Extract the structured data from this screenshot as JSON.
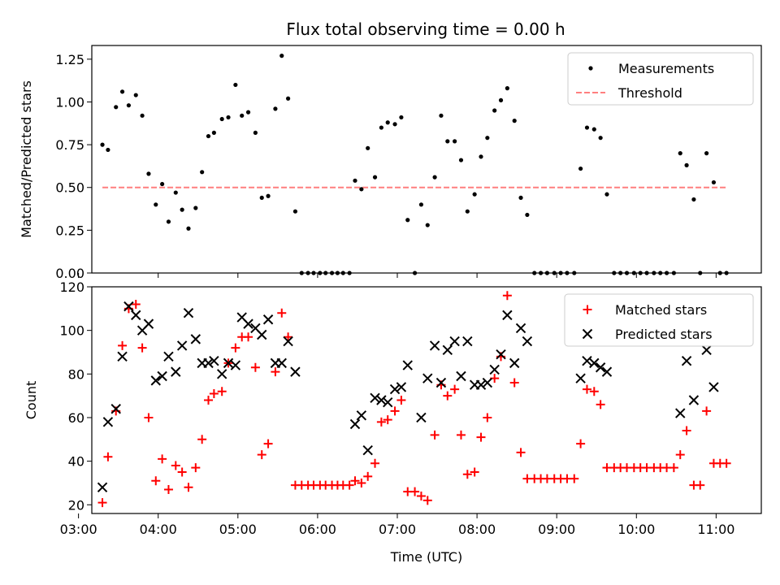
{
  "title": "Flux total observing time = 0.00 h",
  "chart_data": [
    {
      "type": "scatter",
      "panel": "top",
      "title": "Flux total observing time = 0.00 h",
      "xlabel": "",
      "ylabel": "Matched/Predicted stars",
      "xlim": [
        3.167,
        11.567
      ],
      "ylim": [
        0,
        1.33
      ],
      "yticks": [
        0.0,
        0.25,
        0.5,
        0.75,
        1.0,
        1.25
      ],
      "ytick_labels": [
        "0.00",
        "0.25",
        "0.50",
        "0.75",
        "1.00",
        "1.25"
      ],
      "legend_position": "upper right",
      "series": [
        {
          "name": "Measurements",
          "marker": "dot",
          "color": "#000000",
          "x": [
            3.3,
            3.37,
            3.47,
            3.55,
            3.63,
            3.72,
            3.8,
            3.88,
            3.97,
            4.05,
            4.13,
            4.22,
            4.3,
            4.38,
            4.47,
            4.55,
            4.63,
            4.7,
            4.8,
            4.88,
            4.97,
            5.05,
            5.13,
            5.22,
            5.3,
            5.38,
            5.47,
            5.55,
            5.63,
            5.72,
            5.8,
            5.88,
            5.95,
            6.03,
            6.1,
            6.18,
            6.25,
            6.32,
            6.4,
            6.47,
            6.55,
            6.63,
            6.72,
            6.8,
            6.88,
            6.97,
            7.05,
            7.13,
            7.22,
            7.3,
            7.38,
            7.47,
            7.55,
            7.63,
            7.72,
            7.8,
            7.88,
            7.97,
            8.05,
            8.13,
            8.22,
            8.3,
            8.38,
            8.47,
            8.55,
            8.63,
            8.72,
            8.8,
            8.88,
            8.97,
            9.05,
            9.13,
            9.22,
            9.3,
            9.38,
            9.47,
            9.55,
            9.63,
            9.72,
            9.8,
            9.88,
            9.97,
            10.05,
            10.13,
            10.22,
            10.3,
            10.38,
            10.47,
            10.55,
            10.63,
            10.72,
            10.8,
            10.88,
            10.97,
            11.05,
            11.13
          ],
          "y": [
            0.75,
            0.72,
            0.97,
            1.06,
            0.98,
            1.04,
            0.92,
            0.58,
            0.4,
            0.52,
            0.3,
            0.47,
            0.37,
            0.26,
            0.38,
            0.59,
            0.8,
            0.82,
            0.9,
            0.91,
            1.1,
            0.92,
            0.94,
            0.82,
            0.44,
            0.45,
            0.96,
            1.27,
            1.02,
            0.36,
            0,
            0,
            0,
            0,
            0,
            0,
            0,
            0,
            0,
            0.54,
            0.49,
            0.73,
            0.56,
            0.85,
            0.88,
            0.87,
            0.91,
            0.31,
            0,
            0.4,
            0.28,
            0.56,
            0.92,
            0.77,
            0.77,
            0.66,
            0.36,
            0.46,
            0.68,
            0.79,
            0.95,
            1.01,
            1.08,
            0.89,
            0.44,
            0.34,
            0,
            0,
            0,
            0,
            0,
            0,
            0,
            0.61,
            0.85,
            0.84,
            0.79,
            0.46,
            0,
            0,
            0,
            0,
            0,
            0,
            0,
            0,
            0,
            0,
            0.7,
            0.63,
            0.43,
            0,
            0.7,
            0.53,
            0,
            0
          ]
        },
        {
          "name": "Threshold",
          "style": "dashed",
          "color": "#ff7f7f",
          "x": [
            3.3,
            11.13
          ],
          "y": [
            0.5,
            0.5
          ]
        }
      ]
    },
    {
      "type": "scatter",
      "panel": "bottom",
      "xlabel": "Time (UTC)",
      "ylabel": "Count",
      "xlim": [
        3.167,
        11.567
      ],
      "ylim": [
        16,
        120
      ],
      "yticks": [
        20,
        40,
        60,
        80,
        100,
        120
      ],
      "ytick_labels": [
        "20",
        "40",
        "60",
        "80",
        "100",
        "120"
      ],
      "xticks": [
        3,
        4,
        5,
        6,
        7,
        8,
        9,
        10,
        11
      ],
      "xtick_labels": [
        "03:00",
        "04:00",
        "05:00",
        "06:00",
        "07:00",
        "08:00",
        "09:00",
        "10:00",
        "11:00"
      ],
      "legend_position": "upper right",
      "series": [
        {
          "name": "Matched stars",
          "marker": "plus",
          "color": "#ff0000",
          "x": [
            3.3,
            3.37,
            3.47,
            3.55,
            3.63,
            3.72,
            3.8,
            3.88,
            3.97,
            4.05,
            4.13,
            4.22,
            4.3,
            4.38,
            4.47,
            4.55,
            4.63,
            4.7,
            4.8,
            4.88,
            4.97,
            5.05,
            5.13,
            5.22,
            5.3,
            5.38,
            5.47,
            5.55,
            5.63,
            5.72,
            5.8,
            5.88,
            5.95,
            6.03,
            6.1,
            6.18,
            6.25,
            6.32,
            6.4,
            6.47,
            6.55,
            6.63,
            6.72,
            6.8,
            6.88,
            6.97,
            7.05,
            7.13,
            7.22,
            7.3,
            7.38,
            7.47,
            7.55,
            7.63,
            7.72,
            7.8,
            7.88,
            7.97,
            8.05,
            8.13,
            8.22,
            8.3,
            8.38,
            8.47,
            8.55,
            8.63,
            8.72,
            8.8,
            8.88,
            8.97,
            9.05,
            9.13,
            9.22,
            9.3,
            9.38,
            9.47,
            9.55,
            9.63,
            9.72,
            9.8,
            9.88,
            9.97,
            10.05,
            10.13,
            10.22,
            10.3,
            10.38,
            10.47,
            10.55,
            10.63,
            10.72,
            10.8,
            10.88,
            10.97,
            11.05,
            11.13
          ],
          "y": [
            21,
            42,
            63,
            93,
            110,
            112,
            92,
            60,
            31,
            41,
            27,
            38,
            35,
            28,
            37,
            50,
            68,
            71,
            72,
            85,
            92,
            97,
            97,
            83,
            43,
            48,
            81,
            108,
            97,
            29,
            29,
            29,
            29,
            29,
            29,
            29,
            29,
            29,
            29,
            31,
            30,
            33,
            39,
            58,
            59,
            63,
            68,
            26,
            26,
            24,
            22,
            52,
            75,
            70,
            73,
            52,
            34,
            35,
            51,
            60,
            78,
            88,
            116,
            76,
            44,
            32,
            32,
            32,
            32,
            32,
            32,
            32,
            32,
            48,
            73,
            72,
            66,
            37,
            37,
            37,
            37,
            37,
            37,
            37,
            37,
            37,
            37,
            37,
            43,
            54,
            29,
            29,
            63,
            39,
            39,
            39
          ]
        },
        {
          "name": "Predicted stars",
          "marker": "x",
          "color": "#000000",
          "x": [
            3.3,
            3.37,
            3.47,
            3.55,
            3.63,
            3.72,
            3.8,
            3.88,
            3.97,
            4.05,
            4.13,
            4.22,
            4.3,
            4.38,
            4.47,
            4.55,
            4.63,
            4.7,
            4.8,
            4.88,
            4.97,
            5.05,
            5.13,
            5.22,
            5.3,
            5.38,
            5.47,
            5.55,
            5.63,
            5.72,
            6.47,
            6.55,
            6.63,
            6.72,
            6.8,
            6.88,
            6.97,
            7.05,
            7.13,
            7.3,
            7.38,
            7.47,
            7.55,
            7.63,
            7.72,
            7.8,
            7.88,
            7.97,
            8.05,
            8.13,
            8.22,
            8.3,
            8.38,
            8.47,
            8.55,
            8.63,
            9.3,
            9.38,
            9.47,
            9.55,
            9.63,
            10.55,
            10.63,
            10.72,
            10.88,
            10.97
          ],
          "y": [
            28,
            58,
            64,
            88,
            111,
            107,
            100,
            103,
            77,
            79,
            88,
            81,
            93,
            108,
            96,
            85,
            85,
            86,
            80,
            85,
            84,
            106,
            103,
            101,
            98,
            105,
            85,
            85,
            95,
            81,
            57,
            61,
            45,
            69,
            68,
            67,
            73,
            74,
            84,
            60,
            78,
            93,
            76,
            91,
            95,
            79,
            95,
            75,
            75,
            76,
            82,
            89,
            107,
            85,
            101,
            95,
            78,
            86,
            85,
            83,
            81,
            62,
            86,
            68,
            91,
            74
          ]
        }
      ]
    }
  ]
}
